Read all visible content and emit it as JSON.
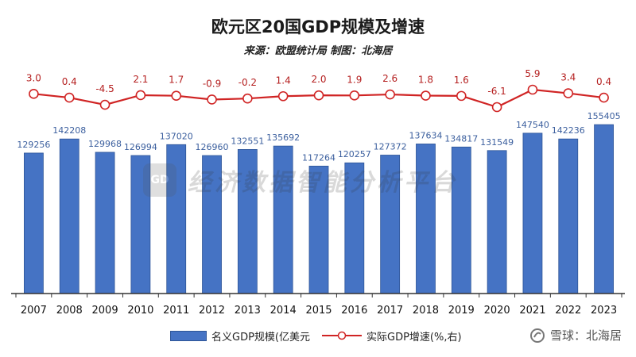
{
  "chart_data": {
    "type": "bar",
    "title": "欧元区20国GDP规模及增速",
    "subtitle": "来源：欧盟统计局  制图：北海居",
    "categories": [
      "2007",
      "2008",
      "2009",
      "2010",
      "2011",
      "2012",
      "2013",
      "2014",
      "2015",
      "2016",
      "2017",
      "2018",
      "2019",
      "2020",
      "2021",
      "2022",
      "2023"
    ],
    "series": [
      {
        "name": "名义GDP规模(亿美元",
        "type": "bar",
        "color": "#4573c4",
        "values": [
          129256,
          142208,
          129968,
          126994,
          137020,
          126960,
          132551,
          135692,
          117264,
          120257,
          127372,
          137634,
          134817,
          131549,
          147540,
          142236,
          155405
        ],
        "value_labels": [
          "129256",
          "142208",
          "129968",
          "126994",
          "137020",
          "126960",
          "132551",
          "135692",
          "117264",
          "120257",
          "127372",
          "137634",
          "134817",
          "131549",
          "147540",
          "142236",
          "155405"
        ]
      },
      {
        "name": "实际GDP增速(%,右)",
        "type": "line",
        "color": "#d02424",
        "values": [
          3.0,
          0.4,
          -4.5,
          2.1,
          1.7,
          -0.9,
          -0.2,
          1.4,
          2.0,
          1.9,
          2.6,
          1.8,
          1.6,
          -6.1,
          5.9,
          3.4,
          0.4
        ],
        "value_labels": [
          "3.0",
          "0.4",
          "-4.5",
          "2.1",
          "1.7",
          "-0.9",
          "-0.2",
          "1.4",
          "2.0",
          "1.9",
          "2.6",
          "1.8",
          "1.6",
          "-6.1",
          "5.9",
          "3.4",
          "0.4"
        ]
      }
    ],
    "grid": false,
    "legend_position": "bottom"
  },
  "watermark": {
    "center_icon_text": "GD",
    "center_text": "经济数据智能分析平台",
    "brand_text": "雪球：北海居",
    "brand_icon": "snowball-icon"
  }
}
